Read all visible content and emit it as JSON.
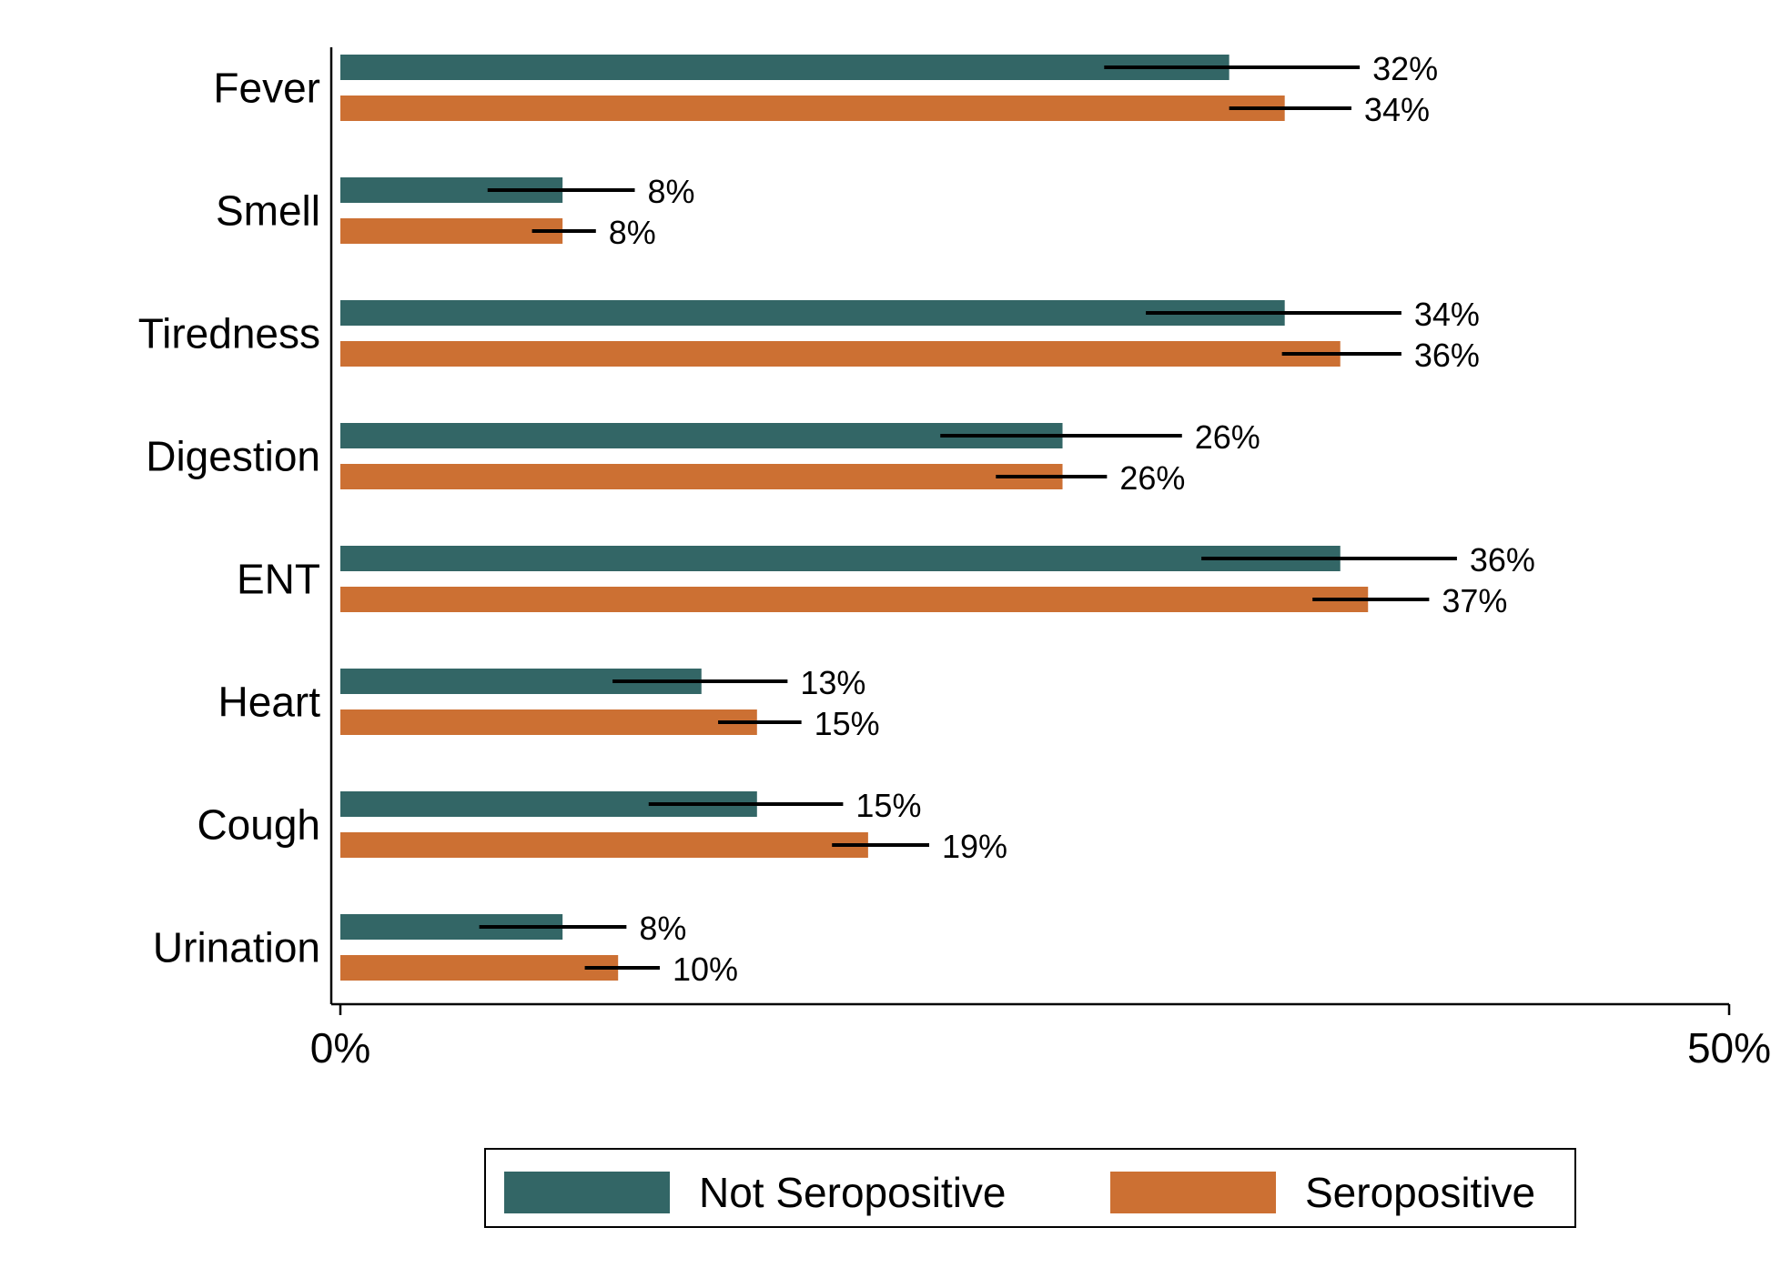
{
  "chart_data": {
    "type": "bar",
    "orientation": "horizontal",
    "categories": [
      "Fever",
      "Smell",
      "Tiredness",
      "Digestion",
      "ENT",
      "Heart",
      "Cough",
      "Urination"
    ],
    "series": [
      {
        "name": "Not Seropositive",
        "color": "#336666",
        "values": [
          32,
          8,
          34,
          26,
          36,
          13,
          15,
          8
        ],
        "value_labels": [
          "32%",
          "8%",
          "34%",
          "26%",
          "36%",
          "13%",
          "15%",
          "8%"
        ],
        "ci_low": [
          27.5,
          5.3,
          29,
          21.6,
          31,
          9.8,
          11.1,
          5
        ],
        "ci_high": [
          36.7,
          10.6,
          38.2,
          30.3,
          40.2,
          16.1,
          18.1,
          10.3
        ]
      },
      {
        "name": "Seropositive",
        "color": "#CC7033",
        "values": [
          34,
          8,
          36,
          26,
          37,
          15,
          19,
          10
        ],
        "value_labels": [
          "34%",
          "8%",
          "36%",
          "26%",
          "37%",
          "15%",
          "19%",
          "10%"
        ],
        "ci_low": [
          32,
          6.9,
          33.9,
          23.6,
          35,
          13.6,
          17.7,
          8.8
        ],
        "ci_high": [
          36.4,
          9.2,
          38.2,
          27.6,
          39.2,
          16.6,
          21.2,
          11.5
        ]
      }
    ],
    "xlim": [
      0,
      50
    ],
    "xticks": [
      0,
      50
    ],
    "xtick_labels": [
      "0%",
      "50%"
    ],
    "title": "",
    "xlabel": "",
    "ylabel": "",
    "grid": false,
    "legend_position": "bottom"
  },
  "legend": {
    "items": [
      {
        "label": "Not Seropositive",
        "color": "#336666"
      },
      {
        "label": "Seropositive",
        "color": "#CC7033"
      }
    ]
  }
}
